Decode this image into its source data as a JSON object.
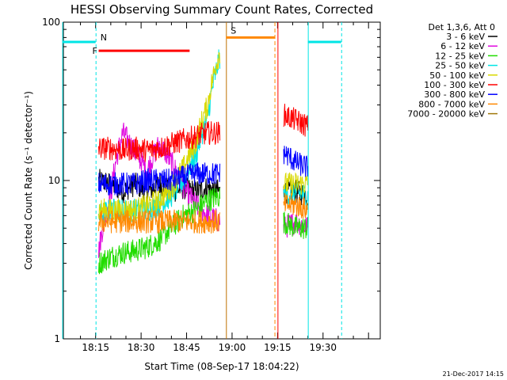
{
  "chart_data": {
    "type": "line",
    "title": "HESSI Observing Summary Count Rates, Corrected",
    "xlabel": "Start Time (08-Sep-17 18:04:22)",
    "ylabel": "Corrected Count Rate (s⁻¹ detector⁻¹)",
    "yscale": "log",
    "ylim": [
      1,
      100
    ],
    "xlim_minutes": [
      0,
      104.5
    ],
    "x_ticks": [
      "18:15",
      "18:30",
      "18:45",
      "19:00",
      "19:15",
      "19:30"
    ],
    "y_ticks": [
      "1",
      "10",
      "100"
    ],
    "legend": {
      "header": "Det 1,3,6, Att 0",
      "placement": "right"
    },
    "data_windows": [
      {
        "start": "18:16",
        "end": "18:56"
      },
      {
        "start": "19:17",
        "end": "19:25"
      }
    ],
    "series": [
      {
        "name": "3 - 6 keV",
        "color": "#000000",
        "values": [
          10,
          9.5,
          8.5,
          9.5,
          8.5,
          9.5,
          8.5,
          9,
          8.5,
          9,
          8.5
        ],
        "values2": [
          8.5,
          8.5,
          8
        ]
      },
      {
        "name": "6 - 12 keV",
        "color": "#e00adf",
        "values": [
          3.5,
          8,
          20,
          15,
          11.5,
          17,
          13,
          9,
          7,
          6,
          5.5
        ],
        "values2": [
          5,
          5.5,
          5
        ]
      },
      {
        "name": "12 - 25 keV",
        "color": "#22dd00",
        "values": [
          3,
          3.3,
          3.5,
          3.6,
          3.8,
          4.2,
          5,
          6,
          6.5,
          7.5,
          8
        ],
        "values2": [
          5.5,
          5,
          5
        ]
      },
      {
        "name": "25 - 50 keV",
        "color": "#00e5e5",
        "values": [
          6,
          6.5,
          6.5,
          6.5,
          6.5,
          7,
          8,
          10,
          14,
          25,
          60
        ],
        "values2": [
          8,
          8.5,
          8
        ]
      },
      {
        "name": "50 - 100 keV",
        "color": "#d9d900",
        "values": [
          6.5,
          6.5,
          6.5,
          6.5,
          7,
          7.5,
          9,
          12,
          17,
          30,
          65
        ],
        "values2": [
          9.5,
          9.5,
          9.5
        ]
      },
      {
        "name": "100 - 300 keV",
        "color": "#ff0000",
        "values": [
          16,
          16,
          15.5,
          16,
          15.5,
          16,
          17,
          18,
          19,
          20,
          20
        ],
        "values2": [
          26,
          24,
          22
        ]
      },
      {
        "name": "300 - 800 keV",
        "color": "#0000ff",
        "values": [
          9.5,
          9.5,
          9.5,
          9.5,
          10,
          10,
          10,
          10.5,
          11,
          11,
          11
        ],
        "values2": [
          15,
          13,
          12
        ]
      },
      {
        "name": "800 - 7000 keV",
        "color": "#ff8800",
        "values": [
          5.5,
          5.5,
          5.5,
          5.5,
          5.5,
          5.5,
          5.5,
          5.5,
          5.5,
          5.5,
          5.5
        ],
        "values2": [
          7,
          7,
          6.5
        ]
      },
      {
        "name": "7000 - 20000 keV",
        "color": "#a0780a",
        "values": [],
        "values2": []
      }
    ],
    "flag_bars": [
      {
        "label": "",
        "color": "#00e5e5",
        "start": "18:04",
        "end": "18:15",
        "level": 75
      },
      {
        "label": "N",
        "color": "#00e5e5",
        "start": "18:15",
        "end": "18:15",
        "level": 75
      },
      {
        "label": "F",
        "color": "#ff0000",
        "start": "18:16",
        "end": "18:46",
        "level": 66
      },
      {
        "label": "S",
        "color": "#ff8800",
        "start": "18:58",
        "end": "19:14",
        "level": 80
      },
      {
        "label": "",
        "color": "#00e5e5",
        "start": "19:25",
        "end": "19:36",
        "level": 75
      }
    ]
  },
  "footer": {
    "timestamp": "21-Dec-2017 14:15"
  }
}
